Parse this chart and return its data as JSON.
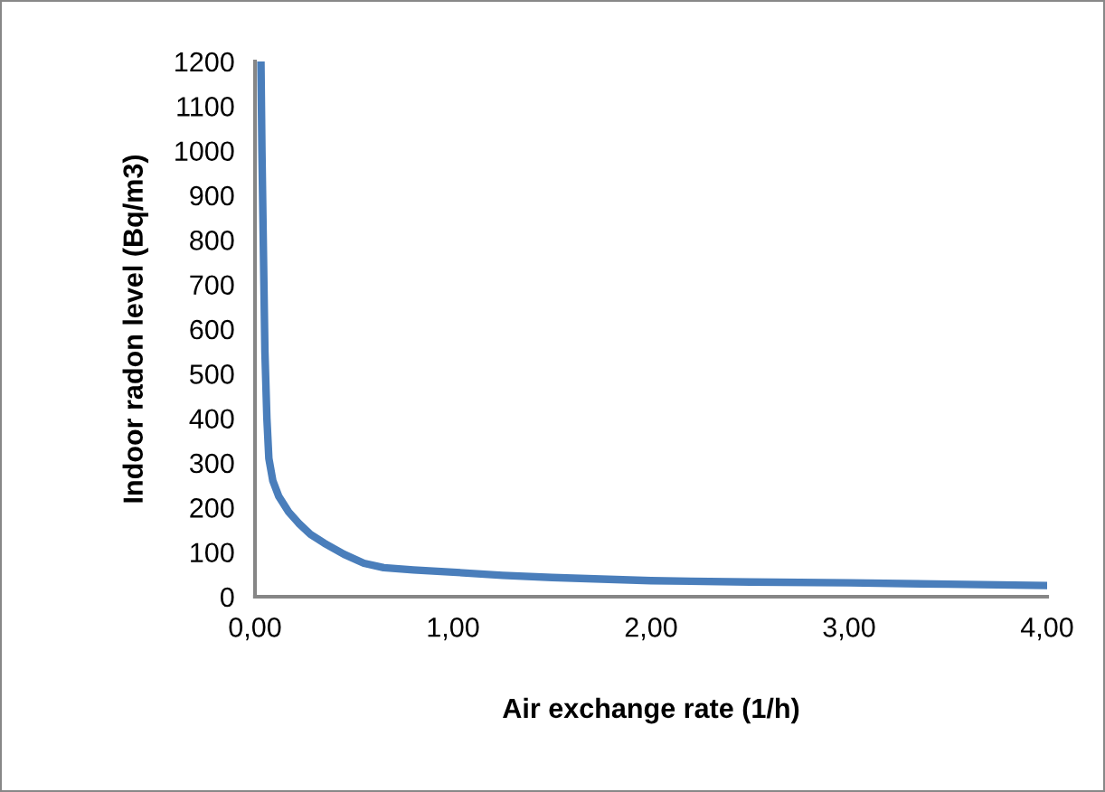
{
  "chart_data": {
    "type": "line",
    "xlabel": "Air exchange rate (1/h)",
    "ylabel": "Indoor radon level (Bq/m3)",
    "x": [
      0.03,
      0.035,
      0.04,
      0.045,
      0.05,
      0.06,
      0.07,
      0.09,
      0.12,
      0.17,
      0.22,
      0.28,
      0.35,
      0.45,
      0.55,
      0.65,
      0.8,
      1.0,
      1.25,
      1.5,
      2.0,
      2.5,
      3.0,
      3.5,
      4.0
    ],
    "series": [
      {
        "color": "#4a7ebb",
        "values": [
          1200,
          1000,
          850,
          700,
          550,
          400,
          310,
          260,
          225,
          190,
          165,
          140,
          120,
          95,
          75,
          65,
          60,
          55,
          48,
          43,
          36,
          33,
          31,
          28,
          25
        ]
      }
    ],
    "xlim": [
      0,
      4
    ],
    "ylim": [
      0,
      1200
    ],
    "xticks": [
      {
        "value": 0,
        "label": "0,00"
      },
      {
        "value": 1,
        "label": "1,00"
      },
      {
        "value": 2,
        "label": "2,00"
      },
      {
        "value": 3,
        "label": "3,00"
      },
      {
        "value": 4,
        "label": "4,00"
      }
    ],
    "yticks": [
      0,
      100,
      200,
      300,
      400,
      500,
      600,
      700,
      800,
      900,
      1000,
      1100,
      1200
    ],
    "grid": false,
    "legend": false
  }
}
